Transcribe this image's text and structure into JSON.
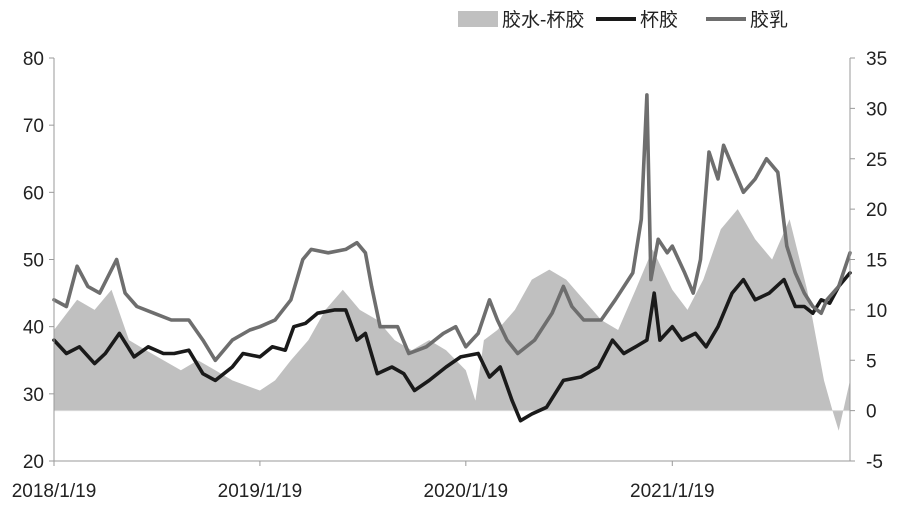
{
  "chart_data": {
    "type": "area",
    "title": "",
    "xlabel": "",
    "ylabel_left": "",
    "ylabel_right": "",
    "x_ticks": [
      "2018/1/19",
      "2019/1/19",
      "2020/1/19",
      "2021/1/19"
    ],
    "x_range": [
      "2018/1/19",
      "2021/11/30"
    ],
    "ylim_left": [
      20,
      80
    ],
    "yticks_left": [
      20,
      30,
      40,
      50,
      60,
      70,
      80
    ],
    "ylim_right": [
      -5,
      35
    ],
    "yticks_right": [
      -5,
      0,
      5,
      10,
      15,
      20,
      25,
      30,
      35
    ],
    "grid": false,
    "legend_position": "top-right",
    "series": [
      {
        "name": "胶水-杯胶",
        "kind": "area",
        "axis": "right",
        "color": "#c0c0c0",
        "points": [
          [
            "2018/1/19",
            8
          ],
          [
            "2018/3/1",
            11
          ],
          [
            "2018/4/1",
            10
          ],
          [
            "2018/5/1",
            12
          ],
          [
            "2018/6/1",
            7
          ],
          [
            "2018/7/1",
            6
          ],
          [
            "2018/8/1",
            5
          ],
          [
            "2018/9/1",
            4
          ],
          [
            "2018/10/1",
            5
          ],
          [
            "2018/11/1",
            4
          ],
          [
            "2018/12/1",
            3
          ],
          [
            "2019/1/19",
            2
          ],
          [
            "2019/2/15",
            3
          ],
          [
            "2019/3/15",
            5
          ],
          [
            "2019/4/15",
            7
          ],
          [
            "2019/5/15",
            10
          ],
          [
            "2019/6/15",
            12
          ],
          [
            "2019/7/15",
            10
          ],
          [
            "2019/8/15",
            9
          ],
          [
            "2019/9/15",
            7
          ],
          [
            "2019/10/15",
            6
          ],
          [
            "2019/11/15",
            7
          ],
          [
            "2019/12/15",
            6
          ],
          [
            "2020/1/19",
            4
          ],
          [
            "2020/2/5",
            1
          ],
          [
            "2020/2/20",
            7
          ],
          [
            "2020/3/15",
            8
          ],
          [
            "2020/4/15",
            10
          ],
          [
            "2020/5/15",
            13
          ],
          [
            "2020/6/15",
            14
          ],
          [
            "2020/7/15",
            13
          ],
          [
            "2020/8/15",
            11
          ],
          [
            "2020/9/15",
            9
          ],
          [
            "2020/10/15",
            8
          ],
          [
            "2020/11/15",
            12
          ],
          [
            "2020/12/15",
            16
          ],
          [
            "2021/1/19",
            12
          ],
          [
            "2021/2/15",
            10
          ],
          [
            "2021/3/15",
            13
          ],
          [
            "2021/4/15",
            18
          ],
          [
            "2021/5/15",
            20
          ],
          [
            "2021/6/15",
            17
          ],
          [
            "2021/7/15",
            15
          ],
          [
            "2021/8/15",
            19
          ],
          [
            "2021/9/15",
            12
          ],
          [
            "2021/10/15",
            3
          ],
          [
            "2021/10/30",
            0
          ],
          [
            "2021/11/10",
            -2
          ],
          [
            "2021/11/30",
            3
          ]
        ]
      },
      {
        "name": "杯胶",
        "kind": "line",
        "axis": "left",
        "color": "#1a1a1a",
        "points": [
          [
            "2018/1/19",
            38
          ],
          [
            "2018/2/10",
            36
          ],
          [
            "2018/3/5",
            37
          ],
          [
            "2018/4/1",
            34.5
          ],
          [
            "2018/4/20",
            36
          ],
          [
            "2018/5/15",
            39
          ],
          [
            "2018/6/10",
            35.5
          ],
          [
            "2018/7/5",
            37
          ],
          [
            "2018/8/1",
            36
          ],
          [
            "2018/8/20",
            36
          ],
          [
            "2018/9/15",
            36.5
          ],
          [
            "2018/10/10",
            33
          ],
          [
            "2018/11/1",
            32
          ],
          [
            "2018/12/1",
            34
          ],
          [
            "2018/12/20",
            36
          ],
          [
            "2019/1/19",
            35.5
          ],
          [
            "2019/2/10",
            37
          ],
          [
            "2019/3/5",
            36.5
          ],
          [
            "2019/3/20",
            40
          ],
          [
            "2019/4/10",
            40.5
          ],
          [
            "2019/5/1",
            42
          ],
          [
            "2019/6/1",
            42.5
          ],
          [
            "2019/6/20",
            42.5
          ],
          [
            "2019/7/10",
            38
          ],
          [
            "2019/7/25",
            39
          ],
          [
            "2019/8/15",
            33
          ],
          [
            "2019/9/10",
            34
          ],
          [
            "2019/10/1",
            33
          ],
          [
            "2019/10/20",
            30.5
          ],
          [
            "2019/11/15",
            32
          ],
          [
            "2019/12/15",
            34
          ],
          [
            "2020/1/10",
            35.5
          ],
          [
            "2020/2/10",
            36
          ],
          [
            "2020/3/1",
            32.5
          ],
          [
            "2020/3/20",
            34
          ],
          [
            "2020/4/10",
            29
          ],
          [
            "2020/4/25",
            26
          ],
          [
            "2020/5/15",
            27
          ],
          [
            "2020/6/10",
            28
          ],
          [
            "2020/7/10",
            32
          ],
          [
            "2020/8/10",
            32.5
          ],
          [
            "2020/9/10",
            34
          ],
          [
            "2020/10/5",
            38
          ],
          [
            "2020/10/25",
            36
          ],
          [
            "2020/11/15",
            37
          ],
          [
            "2020/12/5",
            38
          ],
          [
            "2020/12/18",
            45
          ],
          [
            "2020/12/28",
            38
          ],
          [
            "2021/1/19",
            40
          ],
          [
            "2021/2/5",
            38
          ],
          [
            "2021/3/1",
            39
          ],
          [
            "2021/3/20",
            37
          ],
          [
            "2021/4/10",
            40
          ],
          [
            "2021/5/5",
            45
          ],
          [
            "2021/5/25",
            47
          ],
          [
            "2021/6/15",
            44
          ],
          [
            "2021/7/10",
            45
          ],
          [
            "2021/8/5",
            47
          ],
          [
            "2021/8/25",
            43
          ],
          [
            "2021/9/10",
            43
          ],
          [
            "2021/9/25",
            42
          ],
          [
            "2021/10/10",
            44
          ],
          [
            "2021/10/25",
            43.5
          ],
          [
            "2021/11/10",
            46
          ],
          [
            "2021/11/30",
            48
          ]
        ]
      },
      {
        "name": "胶乳",
        "kind": "line",
        "axis": "left",
        "color": "#6e6e6e",
        "points": [
          [
            "2018/1/19",
            44
          ],
          [
            "2018/2/10",
            43
          ],
          [
            "2018/3/1",
            49
          ],
          [
            "2018/3/20",
            46
          ],
          [
            "2018/4/10",
            45
          ],
          [
            "2018/5/10",
            50
          ],
          [
            "2018/5/25",
            45
          ],
          [
            "2018/6/15",
            43
          ],
          [
            "2018/7/15",
            42
          ],
          [
            "2018/8/15",
            41
          ],
          [
            "2018/9/15",
            41
          ],
          [
            "2018/10/10",
            38
          ],
          [
            "2018/11/1",
            35
          ],
          [
            "2018/12/1",
            38
          ],
          [
            "2019/1/1",
            39.5
          ],
          [
            "2019/1/19",
            40
          ],
          [
            "2019/2/15",
            41
          ],
          [
            "2019/3/15",
            44
          ],
          [
            "2019/4/5",
            50
          ],
          [
            "2019/4/20",
            51.5
          ],
          [
            "2019/5/20",
            51
          ],
          [
            "2019/6/20",
            51.5
          ],
          [
            "2019/7/10",
            52.5
          ],
          [
            "2019/7/25",
            51
          ],
          [
            "2019/8/5",
            46
          ],
          [
            "2019/8/20",
            40
          ],
          [
            "2019/9/20",
            40
          ],
          [
            "2019/10/10",
            36
          ],
          [
            "2019/11/10",
            37
          ],
          [
            "2019/12/10",
            39
          ],
          [
            "2020/1/1",
            40
          ],
          [
            "2020/1/19",
            37
          ],
          [
            "2020/2/10",
            39
          ],
          [
            "2020/3/1",
            44
          ],
          [
            "2020/3/15",
            41
          ],
          [
            "2020/4/1",
            38
          ],
          [
            "2020/4/20",
            36
          ],
          [
            "2020/5/20",
            38
          ],
          [
            "2020/6/20",
            42
          ],
          [
            "2020/7/10",
            46
          ],
          [
            "2020/7/25",
            43
          ],
          [
            "2020/8/15",
            41
          ],
          [
            "2020/9/15",
            41
          ],
          [
            "2020/10/10",
            44
          ],
          [
            "2020/11/10",
            48
          ],
          [
            "2020/11/25",
            56
          ],
          [
            "2020/12/5",
            74.5
          ],
          [
            "2020/12/12",
            47
          ],
          [
            "2020/12/25",
            53
          ],
          [
            "2021/1/10",
            51
          ],
          [
            "2021/1/19",
            52
          ],
          [
            "2021/2/10",
            48
          ],
          [
            "2021/2/25",
            45
          ],
          [
            "2021/3/10",
            50
          ],
          [
            "2021/3/25",
            66
          ],
          [
            "2021/4/10",
            62
          ],
          [
            "2021/4/20",
            67
          ],
          [
            "2021/5/10",
            63
          ],
          [
            "2021/5/25",
            60
          ],
          [
            "2021/6/15",
            62
          ],
          [
            "2021/7/5",
            65
          ],
          [
            "2021/7/25",
            63
          ],
          [
            "2021/8/10",
            52
          ],
          [
            "2021/8/25",
            48
          ],
          [
            "2021/9/10",
            45
          ],
          [
            "2021/9/25",
            43
          ],
          [
            "2021/10/10",
            42
          ],
          [
            "2021/10/20",
            44
          ],
          [
            "2021/11/10",
            46
          ],
          [
            "2021/11/30",
            51
          ]
        ]
      }
    ]
  }
}
